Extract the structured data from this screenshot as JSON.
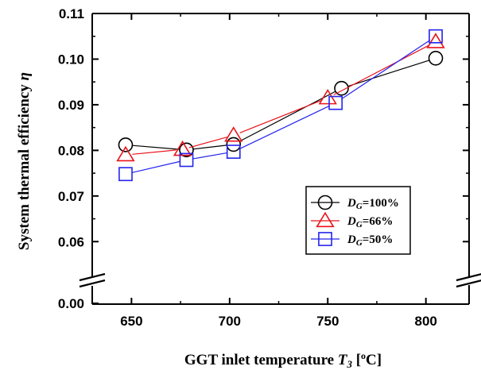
{
  "chart_data": {
    "type": "line",
    "title": "",
    "xlabel": {
      "prefix": "GGT inlet temperature ",
      "var": "T",
      "sub": "3",
      "unit_open": " [",
      "unit_sup": "o",
      "unit_close": "C]"
    },
    "ylabel": {
      "text": "System thermal efficiency ",
      "var": "η"
    },
    "xlim": [
      630,
      822
    ],
    "xticks": [
      "650",
      "700",
      "750",
      "800"
    ],
    "xtick_values": [
      650,
      700,
      750,
      800
    ],
    "y_axis_break": true,
    "ylim_upper": [
      0.055,
      0.11
    ],
    "yticks_upper": [
      "0.06",
      "0.07",
      "0.08",
      "0.09",
      "0.10",
      "0.11"
    ],
    "ytick_upper_values": [
      0.06,
      0.07,
      0.08,
      0.09,
      0.1,
      0.11
    ],
    "ytick_lower": "0.00",
    "ytick_lower_value": 0.0,
    "legend_position": "lower-right",
    "series": [
      {
        "name": {
          "var": "D",
          "sub": "G",
          "rest": "=100%"
        },
        "marker": "circle",
        "color": "#000000",
        "x": [
          647,
          678,
          702,
          757,
          805
        ],
        "y": [
          0.0812,
          0.0801,
          0.0813,
          0.0936,
          0.1002
        ]
      },
      {
        "name": {
          "var": "D",
          "sub": "G",
          "rest": "=66%"
        },
        "marker": "triangle",
        "color": "#e8141b",
        "x": [
          647,
          676,
          702,
          750,
          805
        ],
        "y": [
          0.079,
          0.0802,
          0.0833,
          0.0915,
          0.1038
        ]
      },
      {
        "name": {
          "var": "D",
          "sub": "G",
          "rest": "=50%"
        },
        "marker": "square",
        "color": "#2424ee",
        "x": [
          647,
          678,
          702,
          754,
          805
        ],
        "y": [
          0.0748,
          0.0779,
          0.0797,
          0.0904,
          0.105
        ]
      }
    ]
  }
}
